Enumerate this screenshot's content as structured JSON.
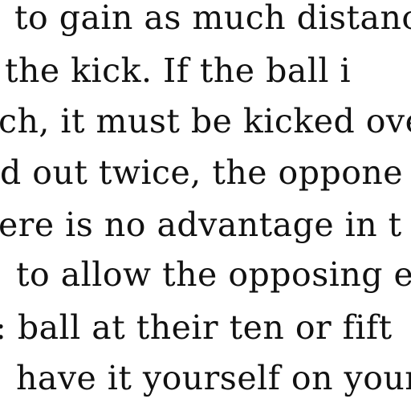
{
  "document": {
    "lines": [
      "to gain as much distanc",
      "the kick.  If the ball i",
      "ch, it must be kicked ove",
      "d out twice, the oppone",
      "ere is no advantage in t",
      "to allow the opposing e",
      ": ball at their ten or fift",
      "have it yourself on yours"
    ]
  }
}
